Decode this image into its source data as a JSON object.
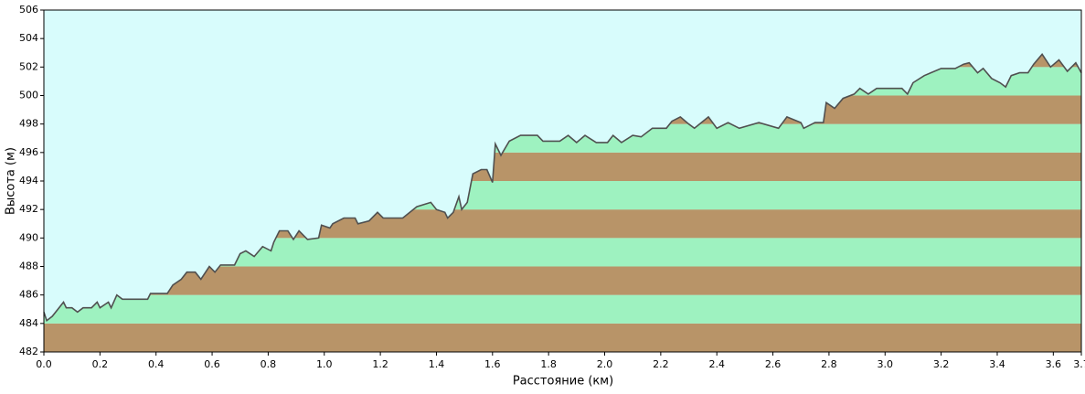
{
  "chart_data": {
    "type": "area",
    "y_label": "Высота (м)",
    "x_label": "Расстояние  (км)",
    "x": [
      0,
      0.01,
      0.03,
      0.07,
      0.08,
      0.1,
      0.12,
      0.14,
      0.17,
      0.19,
      0.2,
      0.23,
      0.24,
      0.26,
      0.28,
      0.37,
      0.38,
      0.44,
      0.46,
      0.49,
      0.51,
      0.54,
      0.56,
      0.59,
      0.61,
      0.63,
      0.68,
      0.7,
      0.72,
      0.75,
      0.78,
      0.81,
      0.82,
      0.84,
      0.87,
      0.89,
      0.91,
      0.94,
      0.98,
      0.99,
      1.02,
      1.03,
      1.07,
      1.11,
      1.12,
      1.16,
      1.19,
      1.21,
      1.28,
      1.33,
      1.38,
      1.4,
      1.43,
      1.44,
      1.46,
      1.48,
      1.49,
      1.51,
      1.53,
      1.56,
      1.58,
      1.6,
      1.61,
      1.63,
      1.66,
      1.7,
      1.76,
      1.78,
      1.84,
      1.87,
      1.9,
      1.93,
      1.97,
      2.01,
      2.03,
      2.06,
      2.1,
      2.13,
      2.17,
      2.22,
      2.24,
      2.27,
      2.3,
      2.32,
      2.37,
      2.4,
      2.44,
      2.48,
      2.55,
      2.62,
      2.65,
      2.7,
      2.71,
      2.75,
      2.78,
      2.79,
      2.82,
      2.85,
      2.89,
      2.91,
      2.94,
      2.97,
      3.06,
      3.08,
      3.1,
      3.14,
      3.2,
      3.25,
      3.28,
      3.3,
      3.33,
      3.35,
      3.38,
      3.41,
      3.43,
      3.45,
      3.48,
      3.51,
      3.53,
      3.56,
      3.59,
      3.62,
      3.65,
      3.68,
      3.7
    ],
    "series": [
      {
        "color": "#505050",
        "values": [
          484.8,
          484.2,
          484.5,
          485.5,
          485.1,
          485.1,
          484.8,
          485.1,
          485.1,
          485.5,
          485.1,
          485.5,
          485.1,
          486.0,
          485.7,
          485.7,
          486.1,
          486.1,
          486.7,
          487.1,
          487.6,
          487.6,
          487.1,
          488.0,
          487.6,
          488.1,
          488.1,
          488.9,
          489.1,
          488.7,
          489.4,
          489.1,
          489.7,
          490.5,
          490.5,
          489.9,
          490.5,
          489.9,
          490.0,
          490.9,
          490.7,
          491.0,
          491.4,
          491.4,
          491.0,
          491.2,
          491.8,
          491.4,
          491.4,
          492.2,
          492.5,
          492.0,
          491.8,
          491.4,
          491.8,
          492.9,
          492.0,
          492.5,
          494.5,
          494.8,
          494.8,
          493.9,
          496.6,
          495.8,
          496.8,
          497.2,
          497.2,
          496.8,
          496.8,
          497.2,
          496.7,
          497.2,
          496.7,
          496.7,
          497.2,
          496.7,
          497.2,
          497.1,
          497.7,
          497.7,
          498.2,
          498.5,
          498.0,
          497.7,
          498.5,
          497.7,
          498.1,
          497.7,
          498.1,
          497.7,
          498.5,
          498.1,
          497.7,
          498.1,
          498.1,
          499.5,
          499.1,
          499.8,
          500.1,
          500.5,
          500.1,
          500.5,
          500.5,
          500.1,
          500.9,
          501.4,
          501.9,
          501.9,
          502.2,
          502.3,
          501.6,
          501.9,
          501.2,
          500.9,
          500.6,
          501.4,
          501.6,
          501.6,
          502.2,
          502.9,
          502.0,
          502.5,
          501.7,
          502.3,
          501.6
        ]
      }
    ],
    "band_colors": [
      "#b89468",
      "#9ef2c0"
    ],
    "background": "#d8fcfc",
    "xlim": [
      0,
      3.7
    ],
    "xticks": [
      {
        "value": 0,
        "label": "0.0"
      },
      0.2,
      0.4,
      0.6,
      0.8,
      {
        "value": 1,
        "label": "1.0"
      },
      1.2,
      1.4,
      1.6,
      1.8,
      {
        "value": 2,
        "label": "2.0"
      },
      2.2,
      2.4,
      2.6,
      2.8,
      {
        "value": 3,
        "label": "3.0"
      },
      3.2,
      3.4,
      3.6,
      3.7
    ],
    "ylim": [
      482,
      506
    ],
    "yticks": [
      482,
      484,
      486,
      488,
      490,
      492,
      494,
      496,
      498,
      500,
      502,
      504,
      506
    ]
  }
}
